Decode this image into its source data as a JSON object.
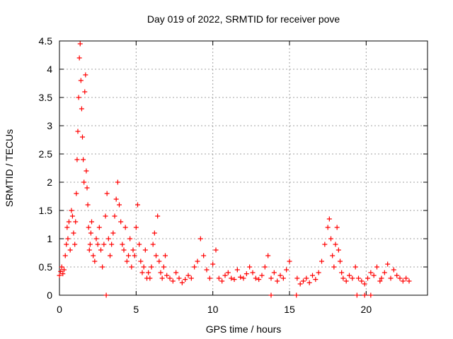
{
  "chart_data": {
    "type": "scatter",
    "title": "Day 019 of 2022, SRMTID for receiver pove",
    "xlabel": "GPS time / hours",
    "ylabel": "SRMTID / TECUs",
    "xlim": [
      0,
      24
    ],
    "ylim": [
      0,
      4.5
    ],
    "x_ticks": [
      0,
      5,
      10,
      15,
      20
    ],
    "x_tick_labels": [
      "0",
      "5",
      "10",
      "15",
      "20"
    ],
    "y_ticks": [
      0,
      0.5,
      1,
      1.5,
      2,
      2.5,
      3,
      3.5,
      4,
      4.5
    ],
    "y_tick_labels": [
      "0",
      "0.5",
      "1",
      "1.5",
      "2",
      "2.5",
      "3",
      "3.5",
      "4",
      "4.5"
    ],
    "grid": true,
    "marker": "+",
    "color": "#ff0000",
    "series": [
      {
        "name": "SRMTID",
        "x": [
          0.0,
          0.08,
          0.15,
          0.22,
          0.3,
          0.38,
          0.45,
          0.5,
          0.55,
          0.62,
          0.7,
          0.78,
          0.85,
          0.92,
          1.0,
          1.05,
          1.1,
          1.15,
          1.2,
          1.25,
          1.3,
          1.35,
          1.4,
          1.45,
          1.5,
          1.55,
          1.6,
          1.65,
          1.7,
          1.75,
          1.8,
          1.85,
          1.9,
          1.95,
          2.0,
          2.05,
          2.1,
          2.2,
          2.3,
          2.4,
          2.5,
          2.6,
          2.7,
          2.8,
          2.9,
          3.0,
          3.1,
          3.2,
          3.3,
          3.4,
          3.5,
          3.6,
          3.7,
          3.8,
          3.9,
          4.0,
          4.1,
          4.2,
          4.3,
          4.4,
          4.5,
          4.6,
          4.7,
          4.8,
          4.9,
          5.0,
          5.1,
          5.2,
          5.3,
          5.4,
          5.5,
          5.6,
          5.7,
          5.8,
          5.9,
          6.0,
          6.1,
          6.2,
          6.3,
          6.4,
          6.5,
          6.6,
          6.7,
          6.8,
          6.9,
          7.0,
          7.2,
          7.4,
          7.6,
          7.8,
          8.0,
          8.2,
          8.4,
          8.6,
          8.8,
          9.0,
          9.2,
          9.4,
          9.6,
          9.8,
          10.0,
          10.2,
          10.4,
          10.6,
          10.8,
          11.0,
          11.2,
          11.4,
          11.6,
          11.8,
          12.0,
          12.2,
          12.4,
          12.6,
          12.8,
          13.0,
          13.2,
          13.4,
          13.6,
          13.8,
          14.0,
          14.2,
          14.4,
          14.6,
          14.8,
          15.0,
          15.5,
          15.7,
          15.9,
          16.1,
          16.3,
          16.5,
          16.7,
          16.9,
          17.1,
          17.3,
          17.5,
          17.6,
          17.7,
          17.8,
          17.9,
          18.0,
          18.1,
          18.2,
          18.3,
          18.4,
          18.5,
          18.7,
          18.9,
          19.1,
          19.3,
          19.5,
          19.7,
          19.9,
          20.1,
          20.3,
          20.5,
          20.7,
          20.9,
          21.0,
          21.2,
          21.4,
          21.6,
          21.8,
          22.0,
          22.2,
          22.4,
          22.6,
          22.8,
          3.05,
          13.8,
          15.45,
          19.4,
          19.9,
          20.3
        ],
        "y": [
          0.35,
          0.42,
          0.5,
          0.38,
          0.45,
          0.7,
          0.9,
          1.2,
          1.0,
          1.3,
          0.8,
          1.5,
          1.4,
          1.1,
          0.9,
          1.3,
          1.8,
          2.4,
          2.9,
          3.5,
          4.2,
          4.45,
          3.8,
          3.3,
          2.8,
          2.4,
          2.0,
          3.6,
          3.9,
          2.2,
          1.9,
          1.6,
          1.2,
          0.8,
          0.9,
          1.1,
          1.3,
          0.7,
          0.6,
          1.0,
          0.9,
          1.2,
          0.8,
          0.5,
          0.9,
          1.4,
          1.8,
          1.0,
          0.7,
          0.9,
          1.1,
          1.4,
          1.7,
          2.0,
          1.6,
          1.3,
          0.9,
          0.8,
          1.2,
          0.6,
          0.7,
          1.0,
          0.5,
          0.8,
          0.7,
          1.2,
          1.6,
          0.9,
          0.6,
          0.4,
          0.5,
          0.8,
          0.3,
          0.4,
          0.3,
          0.5,
          0.9,
          1.1,
          0.7,
          1.4,
          0.6,
          0.4,
          0.3,
          0.5,
          0.7,
          0.35,
          0.3,
          0.25,
          0.4,
          0.3,
          0.22,
          0.28,
          0.35,
          0.3,
          0.5,
          0.6,
          1.0,
          0.7,
          0.45,
          0.3,
          0.55,
          0.8,
          0.3,
          0.25,
          0.35,
          0.4,
          0.3,
          0.28,
          0.45,
          0.32,
          0.3,
          0.38,
          0.5,
          0.4,
          0.3,
          0.28,
          0.35,
          0.5,
          0.7,
          0.3,
          0.4,
          0.25,
          0.35,
          0.3,
          0.45,
          0.6,
          0.3,
          0.2,
          0.25,
          0.3,
          0.22,
          0.35,
          0.28,
          0.4,
          0.6,
          0.9,
          1.2,
          1.35,
          1.0,
          0.7,
          0.5,
          0.9,
          1.2,
          0.8,
          0.6,
          0.4,
          0.3,
          0.25,
          0.35,
          0.3,
          0.5,
          0.3,
          0.25,
          0.2,
          0.3,
          0.4,
          0.35,
          0.5,
          0.25,
          0.3,
          0.4,
          0.55,
          0.3,
          0.45,
          0.35,
          0.3,
          0.25,
          0.3,
          0.25,
          0.0,
          0.0,
          0.0,
          0.0,
          0.0,
          0.0
        ]
      }
    ]
  }
}
